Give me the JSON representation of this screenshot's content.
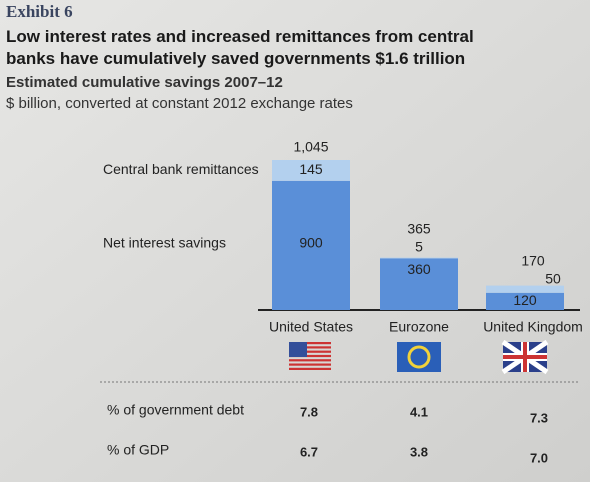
{
  "chart_data": {
    "type": "stacked-bar",
    "exhibit": "Exhibit 6",
    "title": "Low interest rates and increased remittances from central banks have cumulatively saved governments $1.6 trillion",
    "subtitle": "Estimated cumulative savings 2007–12",
    "unit_note": "$ billion, converted at constant 2012 exchange rates",
    "categories": [
      "United States",
      "Eurozone",
      "United Kingdom"
    ],
    "series": [
      {
        "name": "Net interest savings",
        "color": "#5a8fd8",
        "values": [
          900,
          360,
          120
        ]
      },
      {
        "name": "Central bank remittances",
        "color": "#b3d0ee",
        "values": [
          145,
          5,
          50
        ]
      }
    ],
    "totals": [
      1045,
      365,
      170
    ],
    "total_labels": [
      "1,045",
      "365",
      "170"
    ],
    "table": {
      "rows": [
        {
          "label": "% of government debt",
          "values": [
            "7.8",
            "4.1",
            "7.3"
          ]
        },
        {
          "label": "% of GDP",
          "values": [
            "6.7",
            "3.8",
            "7.0"
          ]
        }
      ]
    }
  }
}
